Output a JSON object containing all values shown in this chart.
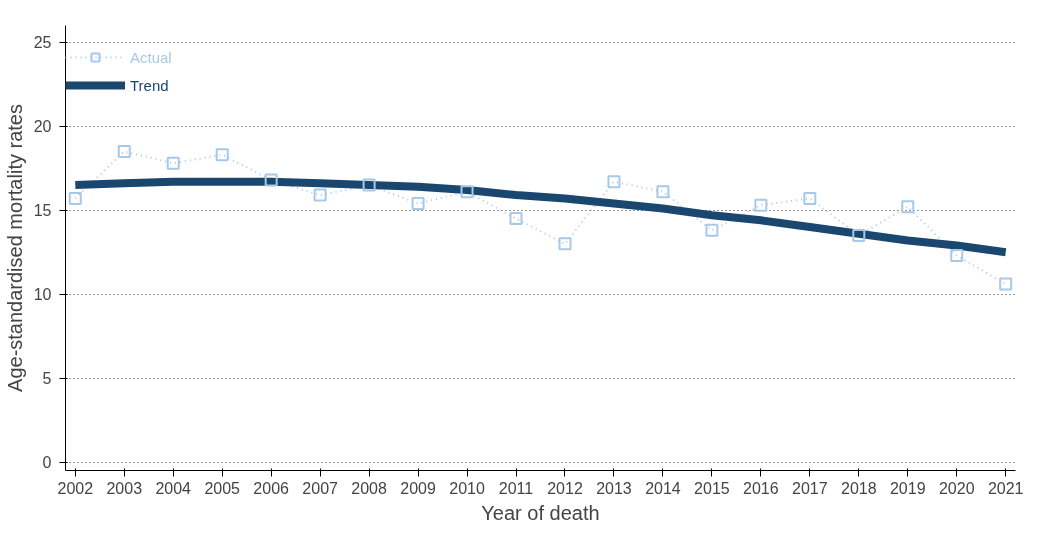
{
  "chart_data": {
    "type": "line",
    "xlabel": "Year of death",
    "ylabel": "Age-standardised mortality rates",
    "x": [
      2002,
      2003,
      2004,
      2005,
      2006,
      2007,
      2008,
      2009,
      2010,
      2011,
      2012,
      2013,
      2014,
      2015,
      2016,
      2017,
      2018,
      2019,
      2020,
      2021
    ],
    "xlim": [
      2001.8,
      2021.2
    ],
    "xticks": [
      2002,
      2003,
      2004,
      2005,
      2006,
      2007,
      2008,
      2009,
      2010,
      2011,
      2012,
      2013,
      2014,
      2015,
      2016,
      2017,
      2018,
      2019,
      2020,
      2021
    ],
    "ylim": [
      -0.5,
      26
    ],
    "yticks": [
      0,
      5,
      10,
      15,
      20,
      25
    ],
    "grid": "y",
    "legend": "top left",
    "series": [
      {
        "name": "Actual",
        "color": "#a8c8e8",
        "marker": "square",
        "line_style": "dotted",
        "values": [
          15.7,
          18.5,
          17.8,
          18.3,
          16.8,
          15.9,
          16.5,
          15.4,
          16.1,
          14.5,
          13.0,
          16.7,
          16.1,
          13.8,
          15.3,
          15.7,
          13.5,
          15.2,
          12.3,
          10.6
        ]
      },
      {
        "name": "Trend",
        "color": "#1a476f",
        "marker": "none",
        "line_style": "solid",
        "values": [
          16.5,
          16.6,
          16.7,
          16.7,
          16.7,
          16.6,
          16.5,
          16.4,
          16.2,
          15.9,
          15.7,
          15.4,
          15.1,
          14.7,
          14.4,
          14.0,
          13.6,
          13.2,
          12.9,
          12.5
        ]
      }
    ]
  }
}
